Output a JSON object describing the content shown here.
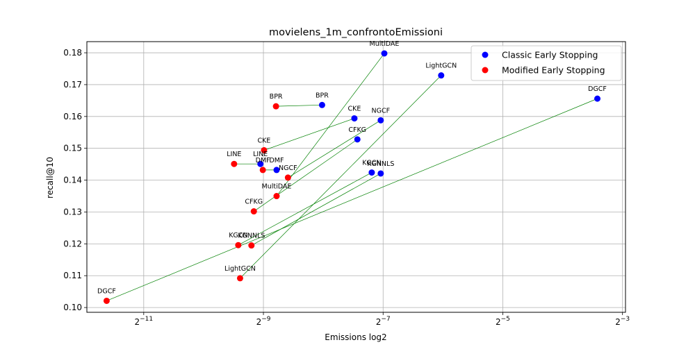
{
  "chart_data": {
    "type": "scatter",
    "title": "movielens_1m_confrontoEmissioni",
    "xlabel": "Emissions log2",
    "ylabel": "recall@10",
    "x_scale": "log2",
    "xlim_log2": [
      -11.95,
      -2.95
    ],
    "ylim": [
      0.0985,
      0.1835
    ],
    "x_ticks": [
      {
        "exp": -11,
        "base": "2",
        "sup": "−11"
      },
      {
        "exp": -9,
        "base": "2",
        "sup": "−9"
      },
      {
        "exp": -7,
        "base": "2",
        "sup": "−7"
      },
      {
        "exp": -5,
        "base": "2",
        "sup": "−5"
      },
      {
        "exp": -3,
        "base": "2",
        "sup": "−3"
      }
    ],
    "y_ticks": [
      {
        "value": 0.1,
        "label": "0.10"
      },
      {
        "value": 0.11,
        "label": "0.11"
      },
      {
        "value": 0.12,
        "label": "0.12"
      },
      {
        "value": 0.13,
        "label": "0.13"
      },
      {
        "value": 0.14,
        "label": "0.14"
      },
      {
        "value": 0.15,
        "label": "0.15"
      },
      {
        "value": 0.16,
        "label": "0.16"
      },
      {
        "value": 0.17,
        "label": "0.17"
      },
      {
        "value": 0.18,
        "label": "0.18"
      }
    ],
    "grid": true,
    "legend_position": "top-right",
    "series": [
      {
        "name": "Classic Early Stopping",
        "color": "#0000ff",
        "points": [
          {
            "label": "MultiDAE",
            "x_log2": -6.98,
            "y": 0.1798
          },
          {
            "label": "LightGCN",
            "x_log2": -6.03,
            "y": 0.1729
          },
          {
            "label": "DGCF",
            "x_log2": -3.42,
            "y": 0.1656
          },
          {
            "label": "BPR",
            "x_log2": -8.02,
            "y": 0.1636
          },
          {
            "label": "CKE",
            "x_log2": -7.48,
            "y": 0.1594
          },
          {
            "label": "NGCF",
            "x_log2": -7.04,
            "y": 0.1588
          },
          {
            "label": "CFKG",
            "x_log2": -7.43,
            "y": 0.1528
          },
          {
            "label": "LINE",
            "x_log2": -9.05,
            "y": 0.1451
          },
          {
            "label": "DMF",
            "x_log2": -8.78,
            "y": 0.1432
          },
          {
            "label": "KGCN",
            "x_log2": -7.19,
            "y": 0.1424
          },
          {
            "label": "KGNNLS",
            "x_log2": -7.04,
            "y": 0.1421
          }
        ]
      },
      {
        "name": "Modified Early Stopping",
        "color": "#ff0000",
        "points": [
          {
            "label": "BPR",
            "x_log2": -8.79,
            "y": 0.1632
          },
          {
            "label": "CKE",
            "x_log2": -8.99,
            "y": 0.1494
          },
          {
            "label": "LINE",
            "x_log2": -9.49,
            "y": 0.1451
          },
          {
            "label": "DMF",
            "x_log2": -9.01,
            "y": 0.1432
          },
          {
            "label": "NGCF",
            "x_log2": -8.59,
            "y": 0.1408
          },
          {
            "label": "MultiDAE",
            "x_log2": -8.78,
            "y": 0.135
          },
          {
            "label": "CFKG",
            "x_log2": -9.16,
            "y": 0.1302
          },
          {
            "label": "KGCN",
            "x_log2": -9.42,
            "y": 0.1196
          },
          {
            "label": "KGNNLS",
            "x_log2": -9.2,
            "y": 0.1195
          },
          {
            "label": "LightGCN",
            "x_log2": -9.39,
            "y": 0.1092
          },
          {
            "label": "DGCF",
            "x_log2": -11.62,
            "y": 0.1021
          }
        ]
      }
    ],
    "connectors_color": "#008000",
    "connectors": [
      [
        "MultiDAE",
        "MultiDAE"
      ],
      [
        "LightGCN",
        "LightGCN"
      ],
      [
        "DGCF",
        "DGCF"
      ],
      [
        "BPR",
        "BPR"
      ],
      [
        "CKE",
        "CKE"
      ],
      [
        "NGCF",
        "NGCF"
      ],
      [
        "CFKG",
        "CFKG"
      ],
      [
        "LINE",
        "LINE"
      ],
      [
        "DMF",
        "DMF"
      ],
      [
        "KGCN",
        "KGCN"
      ],
      [
        "KGNNLS",
        "KGNNLS"
      ]
    ]
  }
}
